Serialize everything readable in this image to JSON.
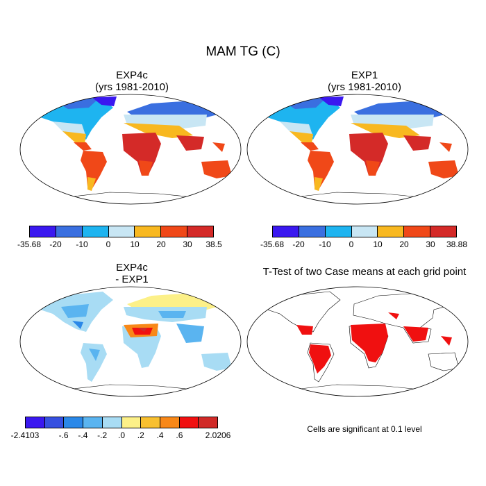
{
  "title": "MAM TG (C)",
  "panels": {
    "top_left": {
      "title_line1": "EXP4c",
      "title_line2": "(yrs 1981-2010)"
    },
    "top_right": {
      "title_line1": "EXP1",
      "title_line2": "(yrs 1981-2010)"
    },
    "bottom_left": {
      "title_line1": "EXP4c",
      "title_line2": "- EXP1"
    },
    "bottom_right": {
      "title": "T-Test of two Case means at each grid point"
    }
  },
  "colorbars": {
    "temp_left": {
      "colors": [
        "#3a18f0",
        "#3a6fe0",
        "#1eb4f0",
        "#c8e6f4",
        "#f8b820",
        "#f04818",
        "#d42a28"
      ],
      "labels": [
        "-35.68",
        "-20",
        "-10",
        "0",
        "10",
        "20",
        "30",
        "38.5"
      ]
    },
    "temp_right": {
      "colors": [
        "#3a18f0",
        "#3a6fe0",
        "#1eb4f0",
        "#c8e6f4",
        "#f8b820",
        "#f04818",
        "#d42a28"
      ],
      "labels": [
        "-35.68",
        "-20",
        "-10",
        "0",
        "10",
        "20",
        "30",
        "38.88"
      ]
    },
    "diff": {
      "colors": [
        "#3a18f0",
        "#3650e0",
        "#2a88e8",
        "#5ab4f0",
        "#a8dcf4",
        "#fcf088",
        "#f8c030",
        "#f88818",
        "#f01010",
        "#d02a28"
      ],
      "labels": [
        "-2.4103",
        "",
        "-.6",
        "-.4",
        "-.2",
        ".0",
        ".2",
        ".4",
        ".6",
        "",
        "2.0206"
      ]
    }
  },
  "note": "Cells are significant at 0.1 level"
}
